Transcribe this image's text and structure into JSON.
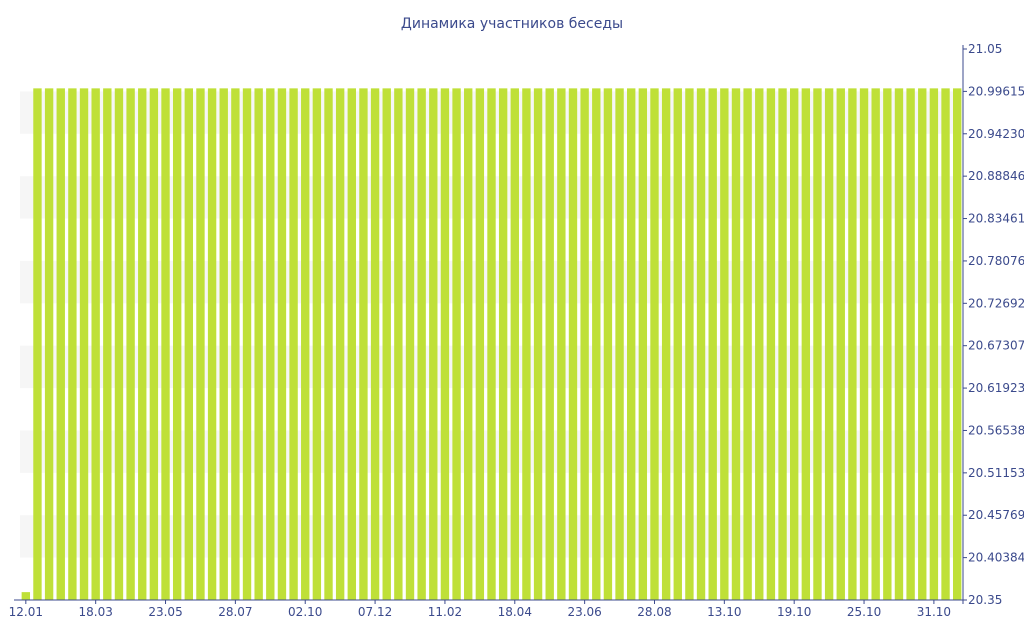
{
  "colors": {
    "bar": "#bfe038",
    "band": "#f6f6f6",
    "text": "#3b4a8c",
    "axis": "#3b4a8c"
  },
  "chart_data": {
    "type": "bar",
    "title": "Динамика участников беседы",
    "xlabel": "",
    "ylabel": "",
    "ylim": [
      20.35,
      21.05
    ],
    "y_axis_side": "right",
    "grid": false,
    "legend": "none",
    "y_ticks": [
      {
        "value": 21.05,
        "label": "21.05"
      },
      {
        "value": 20.99615,
        "label": "20.99615"
      },
      {
        "value": 20.9423,
        "label": "20.94230"
      },
      {
        "value": 20.88846,
        "label": "20.88846"
      },
      {
        "value": 20.83461,
        "label": "20.83461"
      },
      {
        "value": 20.78076,
        "label": "20.78076"
      },
      {
        "value": 20.72692,
        "label": "20.72692"
      },
      {
        "value": 20.67307,
        "label": "20.67307"
      },
      {
        "value": 20.61923,
        "label": "20.61923"
      },
      {
        "value": 20.56538,
        "label": "20.56538"
      },
      {
        "value": 20.51153,
        "label": "20.51153"
      },
      {
        "value": 20.45769,
        "label": "20.45769"
      },
      {
        "value": 20.40384,
        "label": "20.40384"
      },
      {
        "value": 20.35,
        "label": "20.35"
      }
    ],
    "x_ticks": [
      {
        "index": 0,
        "label": "12.01"
      },
      {
        "index": 6,
        "label": "18.03"
      },
      {
        "index": 12,
        "label": "23.05"
      },
      {
        "index": 18,
        "label": "28.07"
      },
      {
        "index": 24,
        "label": "02.10"
      },
      {
        "index": 30,
        "label": "07.12"
      },
      {
        "index": 36,
        "label": "11.02"
      },
      {
        "index": 42,
        "label": "18.04"
      },
      {
        "index": 48,
        "label": "23.06"
      },
      {
        "index": 54,
        "label": "28.08"
      },
      {
        "index": 60,
        "label": "13.10"
      },
      {
        "index": 66,
        "label": "19.10"
      },
      {
        "index": 72,
        "label": "25.10"
      },
      {
        "index": 78,
        "label": "31.10"
      }
    ],
    "values": [
      20.36,
      21,
      21,
      21,
      21,
      21,
      21,
      21,
      21,
      21,
      21,
      21,
      21,
      21,
      21,
      21,
      21,
      21,
      21,
      21,
      21,
      21,
      21,
      21,
      21,
      21,
      21,
      21,
      21,
      21,
      21,
      21,
      21,
      21,
      21,
      21,
      21,
      21,
      21,
      21,
      21,
      21,
      21,
      21,
      21,
      21,
      21,
      21,
      21,
      21,
      21,
      21,
      21,
      21,
      21,
      21,
      21,
      21,
      21,
      21,
      21,
      21,
      21,
      21,
      21,
      21,
      21,
      21,
      21,
      21,
      21,
      21,
      21,
      21,
      21,
      21,
      21,
      21,
      21,
      21,
      21
    ]
  }
}
